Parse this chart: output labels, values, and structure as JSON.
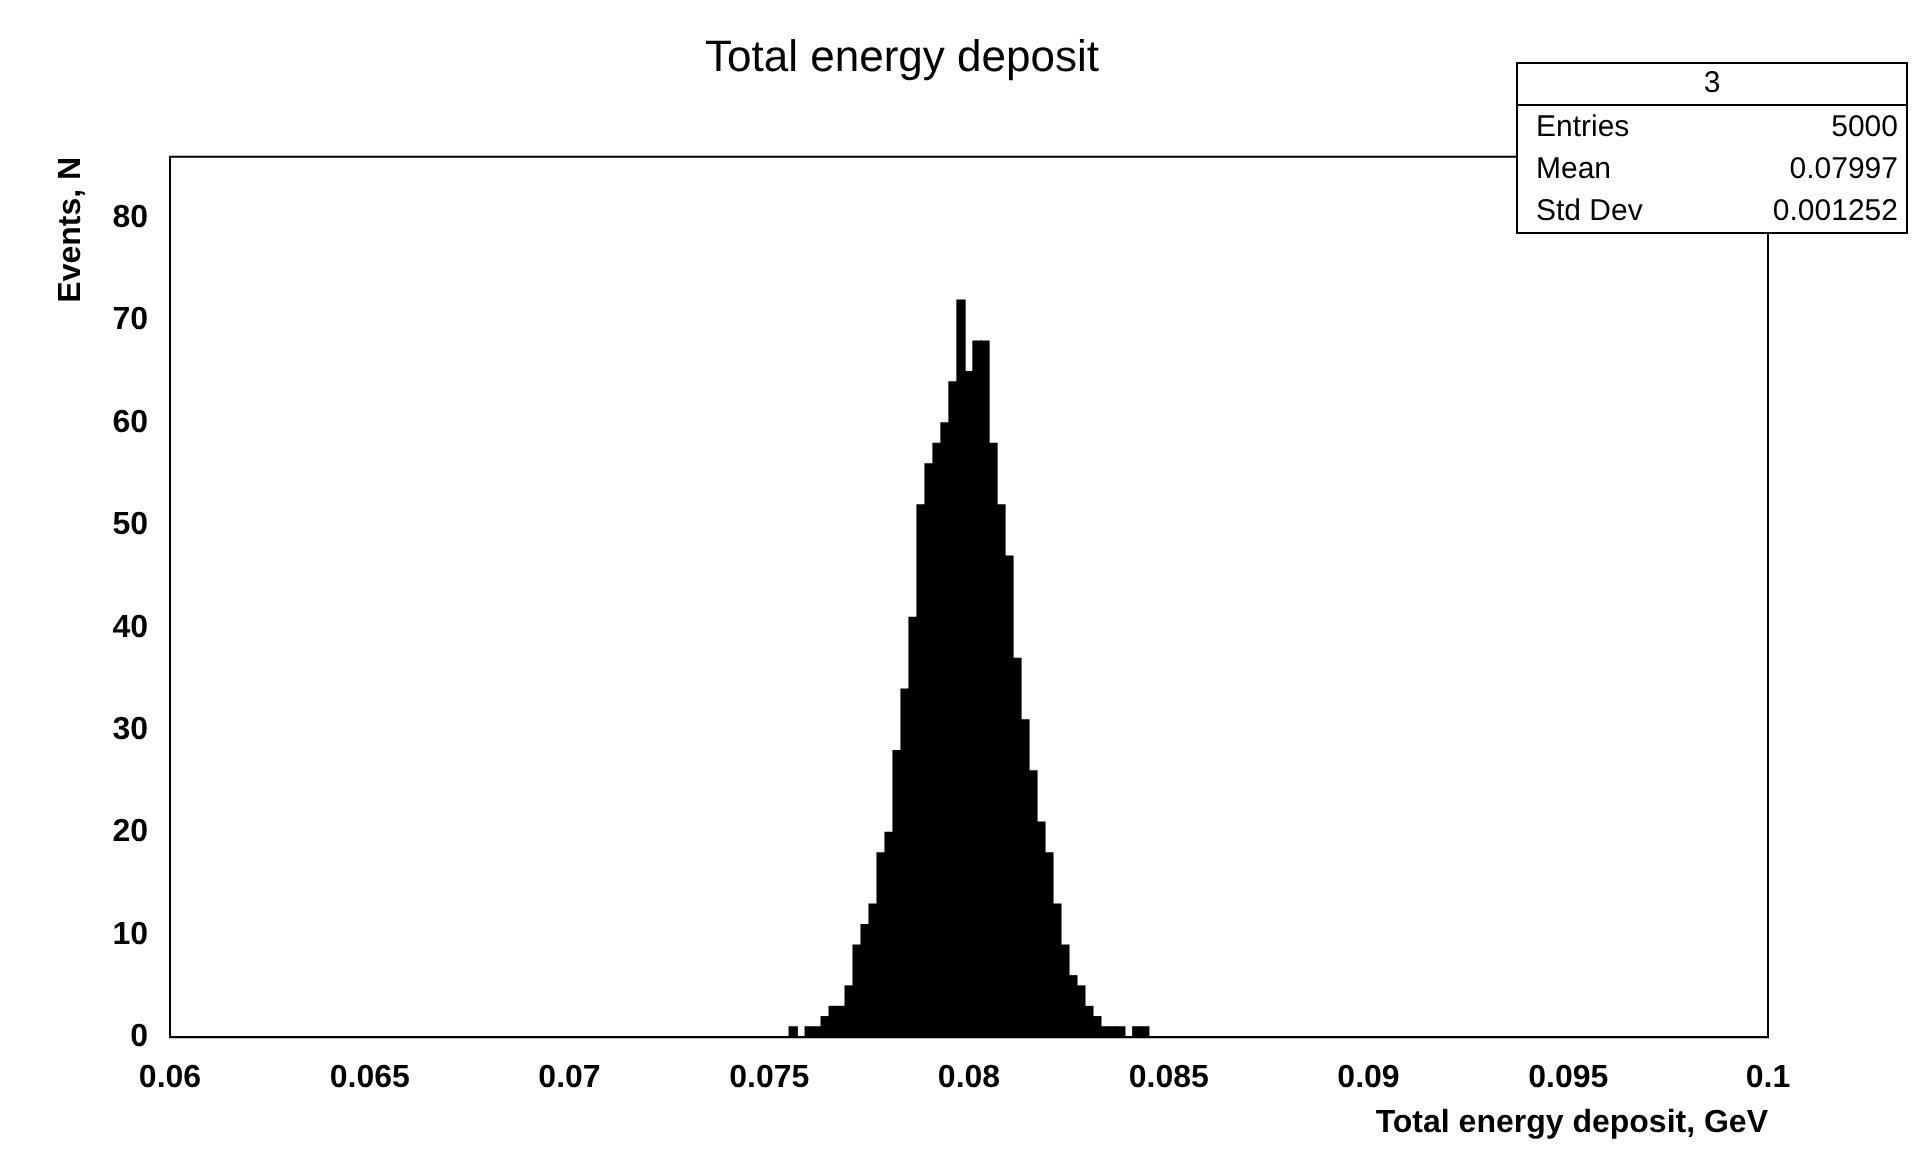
{
  "chart_data": {
    "type": "histogram",
    "title": "Total energy deposit",
    "xlabel": "Total energy deposit, GeV",
    "ylabel": "Events, N",
    "bins": [
      0.0755,
      0.0757,
      0.0759,
      0.0761,
      0.0763,
      0.0765,
      0.0767,
      0.0769,
      0.0771,
      0.0773,
      0.0775,
      0.0777,
      0.0779,
      0.0781,
      0.0783,
      0.0785,
      0.0787,
      0.0789,
      0.0791,
      0.0793,
      0.0795,
      0.0797,
      0.0799,
      0.0801,
      0.0803,
      0.0805,
      0.0807,
      0.0809,
      0.0811,
      0.0813,
      0.0815,
      0.0817,
      0.0819,
      0.0821,
      0.0823,
      0.0825,
      0.0827,
      0.0829,
      0.0831,
      0.0833,
      0.0835,
      0.0837,
      0.0839,
      0.0841,
      0.0843,
      0.0845
    ],
    "values": [
      1,
      0,
      1,
      1,
      2,
      3,
      3,
      5,
      9,
      11,
      13,
      18,
      20,
      28,
      34,
      41,
      52,
      56,
      58,
      60,
      64,
      72,
      65,
      68,
      68,
      58,
      52,
      47,
      37,
      31,
      26,
      21,
      18,
      13,
      9,
      6,
      5,
      3,
      2,
      1,
      1,
      1,
      0,
      1,
      1
    ],
    "color": "#000000",
    "xlim": [
      0.06,
      0.1
    ],
    "xticks": [
      0.06,
      0.065,
      0.07,
      0.075,
      0.08,
      0.085,
      0.09,
      0.095,
      0.1
    ],
    "ylim": [
      0,
      86
    ],
    "yticks": [
      0,
      10,
      20,
      30,
      40,
      50,
      60,
      70,
      80
    ],
    "grid": false,
    "legend": false,
    "annotations": [
      "3",
      "Entries",
      "5000",
      "Mean",
      "0.07997",
      "Std Dev",
      "0.001252"
    ]
  }
}
